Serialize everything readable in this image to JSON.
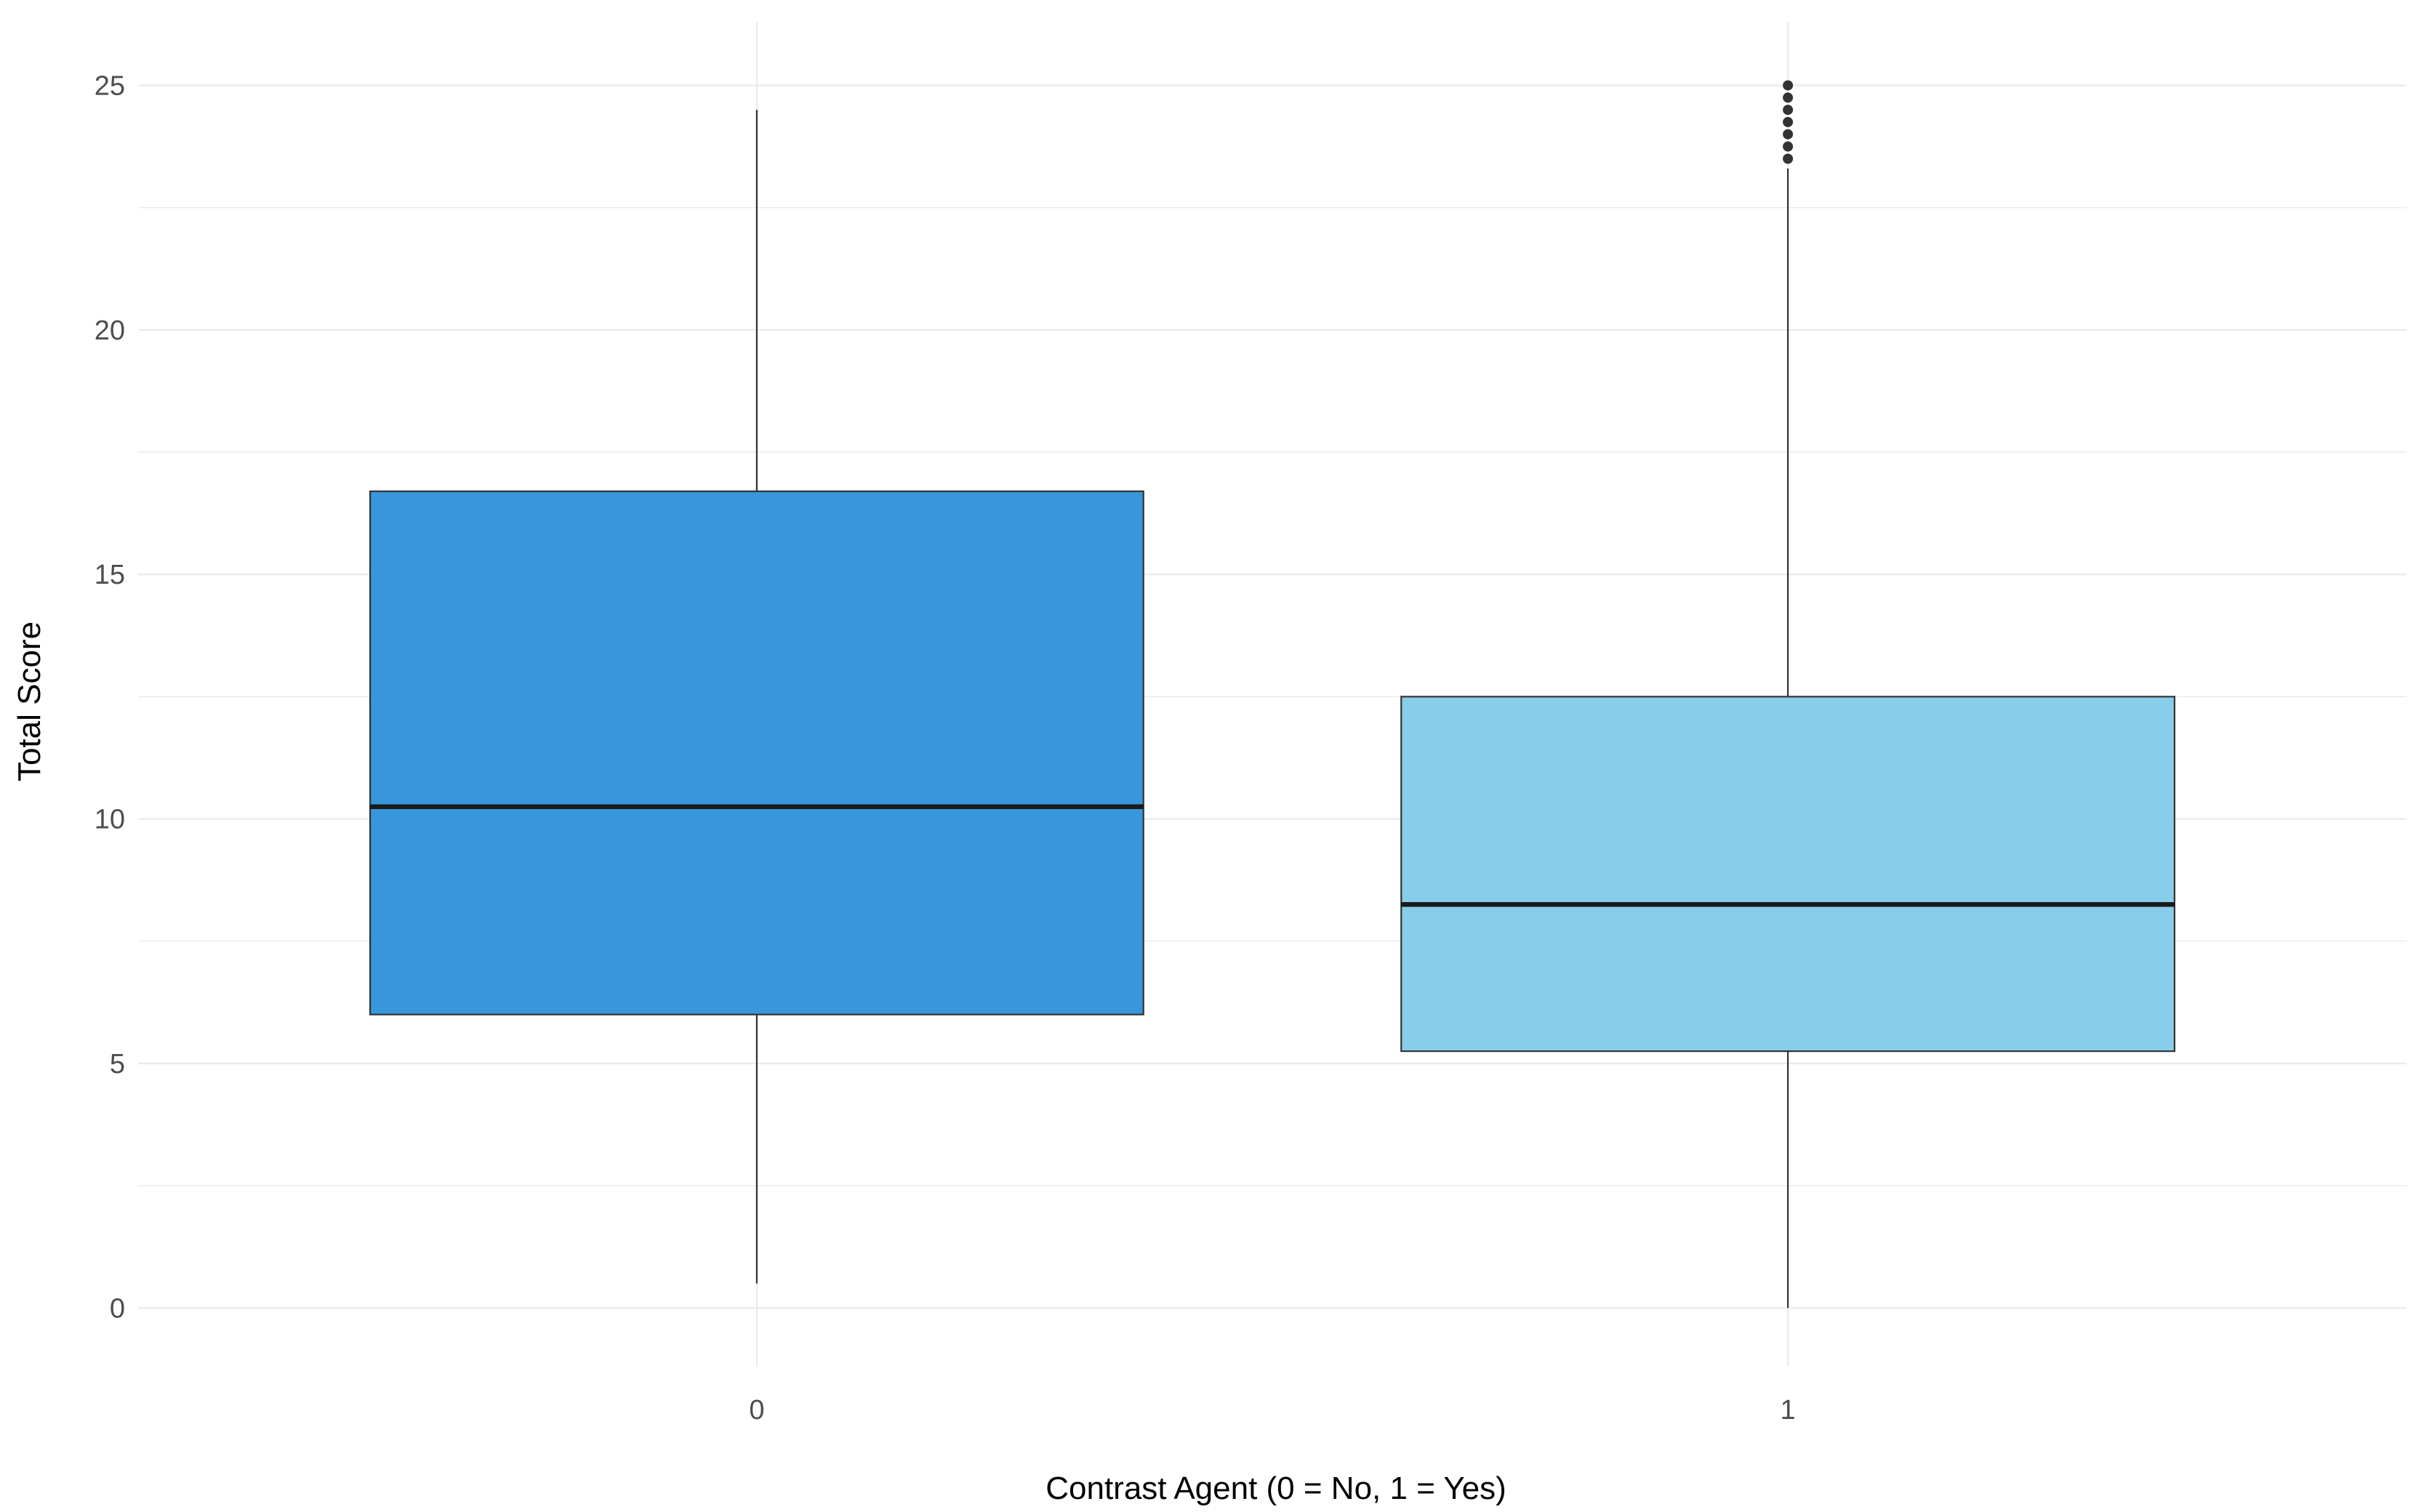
{
  "chart_data": {
    "type": "box",
    "title": "",
    "xlabel": "Contrast Agent (0 = No, 1 = Yes)",
    "ylabel": "Total Score",
    "categories": [
      "0",
      "1"
    ],
    "ylim": [
      -1.2,
      26.3
    ],
    "yticks": [
      0,
      5,
      10,
      15,
      20,
      25
    ],
    "ytick_labels": [
      "0",
      "5",
      "10",
      "15",
      "20",
      "25"
    ],
    "grid": true,
    "legend": "none",
    "boxes": [
      {
        "category": "0",
        "whisker_low": 0.5,
        "q1": 6.0,
        "median": 10.25,
        "q3": 16.7,
        "whisker_high": 24.5,
        "outliers": [],
        "color": "#3797da"
      },
      {
        "category": "1",
        "whisker_low": 0.0,
        "q1": 5.25,
        "median": 8.25,
        "q3": 12.5,
        "whisker_high": 23.3,
        "outliers": [
          23.5,
          23.75,
          24.0,
          24.25,
          24.5,
          24.75,
          25.0
        ],
        "color": "#88cdea"
      }
    ],
    "colors": {
      "box_outline": "#333333",
      "median_line": "#1a1a1a",
      "whisker": "#333333",
      "grid": "#ebebeb",
      "tick_text": "#4d4d4d",
      "title_text": "#000000"
    }
  }
}
